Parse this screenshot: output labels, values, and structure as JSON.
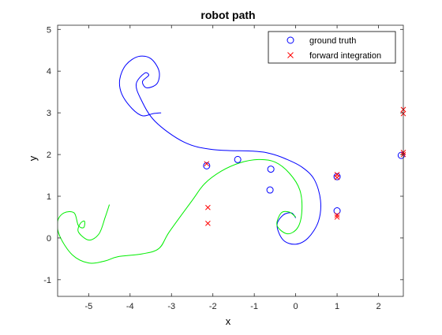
{
  "chart_data": {
    "type": "scatter",
    "title": "robot path",
    "xlabel": "x",
    "ylabel": "y",
    "xlim": [
      -5.75,
      2.6
    ],
    "ylim": [
      -1.4,
      5.1
    ],
    "xticks": [
      -5,
      -4,
      -3,
      -2,
      -1,
      0,
      1,
      2
    ],
    "yticks": [
      -1,
      0,
      1,
      2,
      3,
      4,
      5
    ],
    "grid": false,
    "legend_position": "top-right",
    "legend": [
      {
        "label": "ground truth",
        "marker": "circle",
        "color": "#0000ff"
      },
      {
        "label": "forward integration",
        "marker": "x",
        "color": "#ff0000"
      }
    ],
    "series": [
      {
        "type": "line",
        "color": "#0000ff",
        "points": [
          [
            -3.25,
            3.0
          ],
          [
            -3.45,
            2.98
          ],
          [
            -3.7,
            2.93
          ],
          [
            -3.95,
            3.1
          ],
          [
            -4.2,
            3.45
          ],
          [
            -4.25,
            3.8
          ],
          [
            -4.1,
            4.15
          ],
          [
            -3.8,
            4.35
          ],
          [
            -3.5,
            4.3
          ],
          [
            -3.3,
            4.0
          ],
          [
            -3.35,
            3.7
          ],
          [
            -3.6,
            3.6
          ],
          [
            -3.7,
            3.75
          ],
          [
            -3.55,
            3.9
          ],
          [
            -3.65,
            3.95
          ],
          [
            -3.85,
            3.7
          ],
          [
            -3.75,
            3.35
          ],
          [
            -3.4,
            2.8
          ],
          [
            -2.7,
            2.3
          ],
          [
            -2.0,
            2.12
          ],
          [
            -1.0,
            2.08
          ],
          [
            -0.6,
            2.02
          ],
          [
            -0.25,
            1.9
          ],
          [
            0.15,
            1.7
          ],
          [
            0.45,
            1.4
          ],
          [
            0.6,
            0.9
          ],
          [
            0.55,
            0.4
          ],
          [
            0.3,
            0.0
          ],
          [
            0.0,
            -0.15
          ],
          [
            -0.3,
            -0.05
          ],
          [
            -0.45,
            0.3
          ],
          [
            -0.3,
            0.55
          ],
          [
            -0.1,
            0.6
          ],
          [
            0.0,
            0.48
          ]
        ]
      },
      {
        "type": "line",
        "color": "#00ee00",
        "points": [
          [
            -4.5,
            0.8
          ],
          [
            -4.6,
            0.5
          ],
          [
            -4.75,
            0.1
          ],
          [
            -5.0,
            -0.05
          ],
          [
            -5.25,
            0.15
          ],
          [
            -5.2,
            0.35
          ],
          [
            -5.1,
            0.4
          ],
          [
            -5.12,
            0.25
          ],
          [
            -5.25,
            0.3
          ],
          [
            -5.35,
            0.6
          ],
          [
            -5.6,
            0.6
          ],
          [
            -5.75,
            0.4
          ],
          [
            -5.7,
            0.05
          ],
          [
            -5.4,
            -0.4
          ],
          [
            -5.0,
            -0.6
          ],
          [
            -4.6,
            -0.55
          ],
          [
            -4.3,
            -0.45
          ],
          [
            -3.7,
            -0.38
          ],
          [
            -3.3,
            -0.25
          ],
          [
            -3.05,
            0.15
          ],
          [
            -2.5,
            0.9
          ],
          [
            -2.2,
            1.3
          ],
          [
            -1.8,
            1.6
          ],
          [
            -1.35,
            1.8
          ],
          [
            -0.9,
            1.88
          ],
          [
            -0.5,
            1.82
          ],
          [
            -0.15,
            1.55
          ],
          [
            0.1,
            1.15
          ],
          [
            0.15,
            0.65
          ],
          [
            0.05,
            0.25
          ],
          [
            -0.2,
            0.1
          ],
          [
            -0.45,
            0.3
          ],
          [
            -0.35,
            0.6
          ],
          [
            -0.15,
            0.62
          ],
          [
            0.0,
            0.5
          ]
        ]
      },
      {
        "name": "ground truth",
        "type": "scatter",
        "marker": "circle",
        "color": "#0000ff",
        "points": [
          [
            -2.15,
            1.73
          ],
          [
            -1.4,
            1.88
          ],
          [
            -0.6,
            1.65
          ],
          [
            -0.62,
            1.15
          ],
          [
            1.0,
            1.47
          ],
          [
            1.0,
            0.65
          ],
          [
            2.55,
            1.98
          ]
        ]
      },
      {
        "name": "forward integration",
        "type": "scatter",
        "marker": "x",
        "color": "#ff0000",
        "points": [
          [
            -2.15,
            1.78
          ],
          [
            -2.12,
            0.73
          ],
          [
            -2.12,
            0.35
          ],
          [
            1.0,
            1.52
          ],
          [
            1.0,
            1.45
          ],
          [
            1.0,
            0.55
          ],
          [
            1.0,
            0.5
          ],
          [
            2.6,
            3.08
          ],
          [
            2.6,
            2.98
          ],
          [
            2.6,
            2.05
          ],
          [
            2.6,
            2.0
          ]
        ]
      }
    ]
  }
}
